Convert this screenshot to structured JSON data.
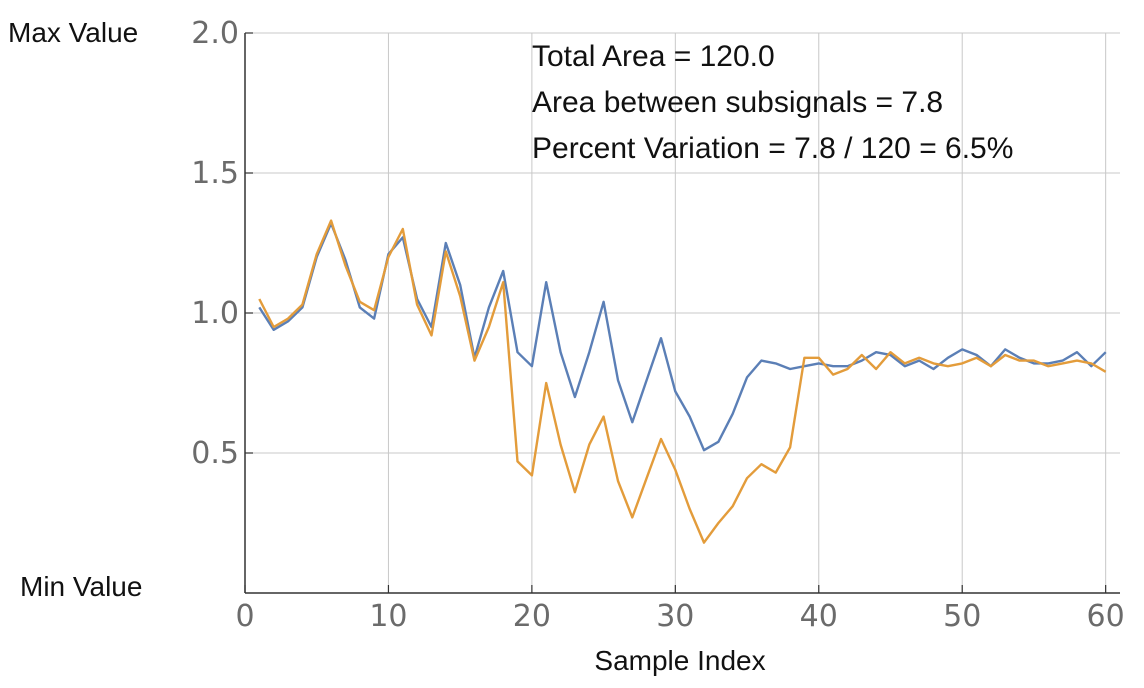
{
  "chart_data": {
    "type": "line",
    "title": "",
    "xlabel": "Sample Index",
    "ylabel": "",
    "xlim": [
      0,
      61
    ],
    "ylim": [
      0,
      2.0
    ],
    "xticks": [
      0,
      10,
      20,
      30,
      40,
      50,
      60
    ],
    "yticks": [
      0.5,
      1.0,
      1.5,
      2.0
    ],
    "ytick_labels": [
      "0.5",
      "1.0",
      "1.5",
      "2.0"
    ],
    "y_side_labels": {
      "max": "Max  Value",
      "min": "Min Value"
    },
    "grid": true,
    "legend": "none",
    "annotations": [
      "Total Area = 120.0",
      "Area between subsignals = 7.8",
      "Percent Variation = 7.8 / 120 = 6.5%"
    ],
    "x": [
      1,
      2,
      3,
      4,
      5,
      6,
      7,
      8,
      9,
      10,
      11,
      12,
      13,
      14,
      15,
      16,
      17,
      18,
      19,
      20,
      21,
      22,
      23,
      24,
      25,
      26,
      27,
      28,
      29,
      30,
      31,
      32,
      33,
      34,
      35,
      36,
      37,
      38,
      39,
      40,
      41,
      42,
      43,
      44,
      45,
      46,
      47,
      48,
      49,
      50,
      51,
      52,
      53,
      54,
      55,
      56,
      57,
      58,
      59,
      60
    ],
    "series": [
      {
        "color": "#5b7fb6",
        "values": [
          1.02,
          0.94,
          0.97,
          1.02,
          1.2,
          1.32,
          1.19,
          1.02,
          0.98,
          1.21,
          1.27,
          1.05,
          0.95,
          1.25,
          1.1,
          0.84,
          1.02,
          1.15,
          0.86,
          0.81,
          1.11,
          0.86,
          0.7,
          0.86,
          1.04,
          0.76,
          0.61,
          0.76,
          0.91,
          0.72,
          0.63,
          0.51,
          0.54,
          0.64,
          0.77,
          0.83,
          0.82,
          0.8,
          0.81,
          0.82,
          0.81,
          0.81,
          0.83,
          0.86,
          0.85,
          0.81,
          0.83,
          0.8,
          0.84,
          0.87,
          0.85,
          0.81,
          0.87,
          0.84,
          0.82,
          0.82,
          0.83,
          0.86,
          0.81,
          0.86
        ]
      },
      {
        "color": "#e39c3b",
        "values": [
          1.05,
          0.95,
          0.98,
          1.03,
          1.21,
          1.33,
          1.17,
          1.04,
          1.01,
          1.2,
          1.3,
          1.03,
          0.92,
          1.22,
          1.06,
          0.83,
          0.95,
          1.11,
          0.47,
          0.42,
          0.75,
          0.53,
          0.36,
          0.53,
          0.63,
          0.4,
          0.27,
          0.41,
          0.55,
          0.44,
          0.3,
          0.18,
          0.25,
          0.31,
          0.41,
          0.46,
          0.43,
          0.52,
          0.84,
          0.84,
          0.78,
          0.8,
          0.85,
          0.8,
          0.86,
          0.82,
          0.84,
          0.82,
          0.81,
          0.82,
          0.84,
          0.81,
          0.85,
          0.83,
          0.83,
          0.81,
          0.82,
          0.83,
          0.82,
          0.79
        ]
      }
    ]
  }
}
